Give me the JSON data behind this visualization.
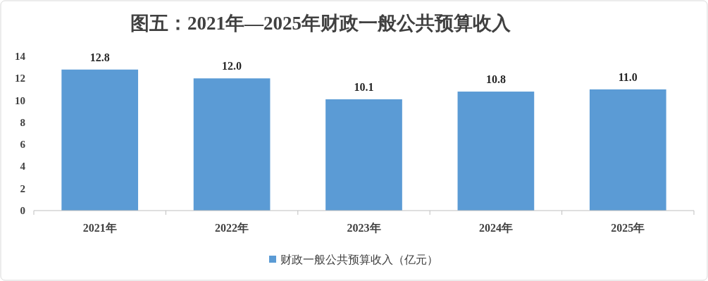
{
  "chart_data": {
    "type": "bar",
    "title": "图五：2021年—2025年财政一般公共预算收入",
    "categories": [
      "2021年",
      "2022年",
      "2023年",
      "2024年",
      "2025年"
    ],
    "series": [
      {
        "name": "财政一般公共预算收入（亿元）",
        "color": "#5b9bd5",
        "values": [
          12.8,
          12.0,
          10.1,
          10.8,
          11.0
        ],
        "value_labels": [
          "12.8",
          "12.0",
          "10.1",
          "10.8",
          "11.0"
        ]
      }
    ],
    "ylim": [
      0,
      14
    ],
    "yticks": [
      0,
      2,
      4,
      6,
      8,
      10,
      12,
      14
    ],
    "legend": "bottom"
  }
}
